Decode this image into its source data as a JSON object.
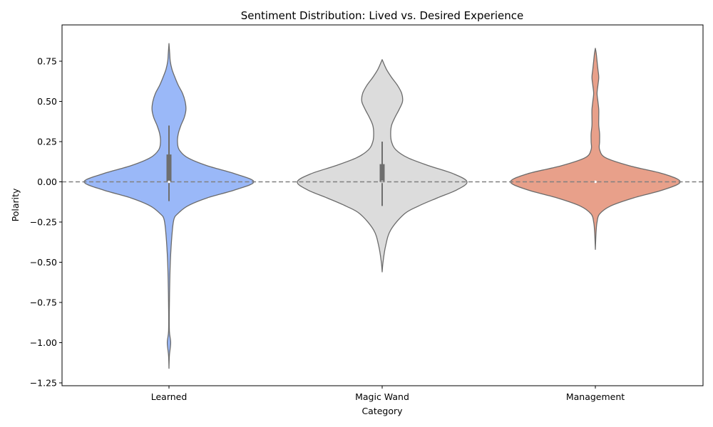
{
  "chart_data": {
    "type": "violin",
    "title": "Sentiment Distribution: Lived vs. Desired Experience",
    "xlabel": "Category",
    "ylabel": "Polarity",
    "ylim": [
      -1.27,
      0.96
    ],
    "yticks": [
      0.75,
      0.5,
      0.25,
      0.0,
      -0.25,
      -0.5,
      -0.75,
      -1.0,
      -1.25
    ],
    "ytick_labels": [
      "0.75",
      "0.50",
      "0.25",
      "0.00",
      "−0.25",
      "−0.50",
      "−0.75",
      "−1.00",
      "−1.25"
    ],
    "categories": [
      "Learned",
      "Magic Wand",
      "Management"
    ],
    "reference_line": {
      "y": 0.0,
      "style": "dashed",
      "color": "#808080"
    },
    "grid": false,
    "series": [
      {
        "category": "Learned",
        "color": "#9ab8f8",
        "box": {
          "q1": 0.0,
          "median": 0.0,
          "q3": 0.17,
          "whisker_low": -0.12,
          "whisker_high": 0.35
        },
        "density": [
          [
            -1.16,
            0.0
          ],
          [
            -1.08,
            0.005
          ],
          [
            -1.0,
            0.02
          ],
          [
            -0.93,
            0.005
          ],
          [
            -0.8,
            0.004
          ],
          [
            -0.6,
            0.01
          ],
          [
            -0.45,
            0.02
          ],
          [
            -0.3,
            0.04
          ],
          [
            -0.23,
            0.06
          ],
          [
            -0.2,
            0.1
          ],
          [
            -0.15,
            0.22
          ],
          [
            -0.1,
            0.45
          ],
          [
            -0.05,
            0.78
          ],
          [
            0.0,
            1.0
          ],
          [
            0.05,
            0.78
          ],
          [
            0.1,
            0.45
          ],
          [
            0.15,
            0.22
          ],
          [
            0.2,
            0.12
          ],
          [
            0.25,
            0.1
          ],
          [
            0.3,
            0.11
          ],
          [
            0.35,
            0.14
          ],
          [
            0.4,
            0.18
          ],
          [
            0.45,
            0.2
          ],
          [
            0.5,
            0.19
          ],
          [
            0.55,
            0.16
          ],
          [
            0.6,
            0.11
          ],
          [
            0.65,
            0.07
          ],
          [
            0.7,
            0.035
          ],
          [
            0.75,
            0.015
          ],
          [
            0.8,
            0.008
          ],
          [
            0.86,
            0.0
          ]
        ]
      },
      {
        "category": "Magic Wand",
        "color": "#dcdcdc",
        "box": {
          "q1": 0.0,
          "median": 0.0,
          "q3": 0.11,
          "whisker_low": -0.15,
          "whisker_high": 0.25
        },
        "density": [
          [
            -0.56,
            0.0
          ],
          [
            -0.5,
            0.01
          ],
          [
            -0.4,
            0.04
          ],
          [
            -0.3,
            0.1
          ],
          [
            -0.2,
            0.26
          ],
          [
            -0.15,
            0.43
          ],
          [
            -0.1,
            0.65
          ],
          [
            -0.05,
            0.88
          ],
          [
            0.0,
            1.0
          ],
          [
            0.05,
            0.84
          ],
          [
            0.1,
            0.55
          ],
          [
            0.15,
            0.3
          ],
          [
            0.2,
            0.16
          ],
          [
            0.25,
            0.11
          ],
          [
            0.3,
            0.1
          ],
          [
            0.35,
            0.11
          ],
          [
            0.4,
            0.15
          ],
          [
            0.45,
            0.2
          ],
          [
            0.5,
            0.24
          ],
          [
            0.55,
            0.23
          ],
          [
            0.6,
            0.18
          ],
          [
            0.65,
            0.11
          ],
          [
            0.7,
            0.05
          ],
          [
            0.76,
            0.0
          ]
        ]
      },
      {
        "category": "Management",
        "color": "#e8a08a",
        "box": {
          "q1": 0.0,
          "median": 0.0,
          "q3": 0.0,
          "whisker_low": 0.0,
          "whisker_high": 0.0
        },
        "density": [
          [
            -0.42,
            0.0
          ],
          [
            -0.35,
            0.005
          ],
          [
            -0.3,
            0.01
          ],
          [
            -0.25,
            0.02
          ],
          [
            -0.2,
            0.05
          ],
          [
            -0.15,
            0.18
          ],
          [
            -0.1,
            0.45
          ],
          [
            -0.05,
            0.8
          ],
          [
            0.0,
            1.0
          ],
          [
            0.05,
            0.8
          ],
          [
            0.1,
            0.4
          ],
          [
            0.15,
            0.12
          ],
          [
            0.2,
            0.05
          ],
          [
            0.25,
            0.05
          ],
          [
            0.3,
            0.05
          ],
          [
            0.35,
            0.04
          ],
          [
            0.4,
            0.04
          ],
          [
            0.45,
            0.04
          ],
          [
            0.5,
            0.03
          ],
          [
            0.55,
            0.02
          ],
          [
            0.6,
            0.03
          ],
          [
            0.65,
            0.04
          ],
          [
            0.7,
            0.03
          ],
          [
            0.75,
            0.02
          ],
          [
            0.8,
            0.01
          ],
          [
            0.83,
            0.0
          ]
        ]
      }
    ]
  }
}
